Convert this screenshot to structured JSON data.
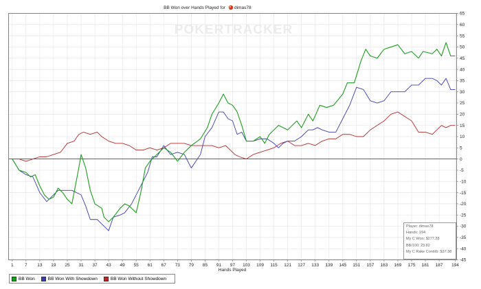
{
  "chart_data": {
    "type": "line",
    "title": "BB Won over Hands Played for",
    "player_name": "dimas78",
    "player_icon": "poker-site-icon",
    "watermark": "POKERTRACKER",
    "xlabel": "Hands Played",
    "ylabel": "",
    "xlim": [
      1,
      194
    ],
    "ylim": [
      -45,
      65
    ],
    "x_ticks": [
      1,
      7,
      13,
      19,
      25,
      31,
      37,
      43,
      49,
      55,
      61,
      67,
      73,
      79,
      85,
      91,
      97,
      103,
      109,
      115,
      121,
      127,
      133,
      139,
      145,
      151,
      157,
      163,
      169,
      175,
      181,
      187,
      194
    ],
    "y_ticks": [
      -45,
      -40,
      -35,
      -30,
      -25,
      -20,
      -15,
      -10,
      -5,
      0,
      5,
      10,
      15,
      20,
      25,
      30,
      35,
      40,
      45,
      50,
      55,
      60,
      65
    ],
    "grid": true,
    "legend": "bottom-left",
    "series": [
      {
        "name": "BB Won",
        "color": "#1a9e1a",
        "points": [
          [
            1,
            0
          ],
          [
            4,
            -5
          ],
          [
            7,
            -6
          ],
          [
            9,
            -8
          ],
          [
            11,
            -7
          ],
          [
            13,
            -12
          ],
          [
            15,
            -16
          ],
          [
            17,
            -18
          ],
          [
            19,
            -17
          ],
          [
            21,
            -13
          ],
          [
            23,
            -15
          ],
          [
            25,
            -18
          ],
          [
            27,
            -20
          ],
          [
            30,
            -4
          ],
          [
            31,
            2
          ],
          [
            33,
            -4
          ],
          [
            35,
            -14
          ],
          [
            37,
            -20
          ],
          [
            40,
            -22
          ],
          [
            41,
            -26
          ],
          [
            43,
            -28
          ],
          [
            45,
            -26
          ],
          [
            48,
            -22
          ],
          [
            50,
            -20
          ],
          [
            52,
            -21
          ],
          [
            55,
            -24
          ],
          [
            57,
            -15
          ],
          [
            59,
            -4
          ],
          [
            61,
            -1
          ],
          [
            64,
            2
          ],
          [
            67,
            5
          ],
          [
            70,
            3
          ],
          [
            73,
            -1
          ],
          [
            76,
            3
          ],
          [
            79,
            6
          ],
          [
            83,
            9
          ],
          [
            86,
            14
          ],
          [
            88,
            20
          ],
          [
            91,
            25
          ],
          [
            93,
            29
          ],
          [
            95,
            25
          ],
          [
            97,
            24
          ],
          [
            99,
            21
          ],
          [
            101,
            15
          ],
          [
            103,
            8
          ],
          [
            106,
            8
          ],
          [
            109,
            10
          ],
          [
            111,
            7
          ],
          [
            113,
            11
          ],
          [
            115,
            13
          ],
          [
            117,
            15
          ],
          [
            121,
            13
          ],
          [
            125,
            17
          ],
          [
            127,
            14
          ],
          [
            130,
            20
          ],
          [
            132,
            17
          ],
          [
            135,
            24
          ],
          [
            138,
            23
          ],
          [
            141,
            24
          ],
          [
            145,
            29
          ],
          [
            147,
            34
          ],
          [
            150,
            34
          ],
          [
            153,
            44
          ],
          [
            155,
            49
          ],
          [
            157,
            46
          ],
          [
            160,
            45
          ],
          [
            163,
            49
          ],
          [
            166,
            50
          ],
          [
            169,
            51
          ],
          [
            172,
            47
          ],
          [
            175,
            48
          ],
          [
            178,
            45
          ],
          [
            180,
            48
          ],
          [
            184,
            47
          ],
          [
            186,
            49
          ],
          [
            188,
            46
          ],
          [
            190,
            52
          ],
          [
            192,
            46
          ],
          [
            194,
            46
          ]
        ]
      },
      {
        "name": "BB Won With Showdown",
        "color": "#3b3bb0",
        "points": [
          [
            1,
            0
          ],
          [
            4,
            -5
          ],
          [
            7,
            -7
          ],
          [
            10,
            -8
          ],
          [
            13,
            -15
          ],
          [
            16,
            -19
          ],
          [
            19,
            -16
          ],
          [
            21,
            -14
          ],
          [
            24,
            -14
          ],
          [
            27,
            -14
          ],
          [
            31,
            -16
          ],
          [
            33,
            -21
          ],
          [
            35,
            -27
          ],
          [
            38,
            -27
          ],
          [
            41,
            -30
          ],
          [
            43,
            -32
          ],
          [
            45,
            -26
          ],
          [
            48,
            -25
          ],
          [
            50,
            -24
          ],
          [
            53,
            -20
          ],
          [
            57,
            -12
          ],
          [
            60,
            -6
          ],
          [
            62,
            1
          ],
          [
            64,
            1
          ],
          [
            67,
            6
          ],
          [
            70,
            2
          ],
          [
            73,
            3
          ],
          [
            76,
            2
          ],
          [
            79,
            -4
          ],
          [
            81,
            -1
          ],
          [
            83,
            2
          ],
          [
            85,
            10
          ],
          [
            88,
            14
          ],
          [
            91,
            21
          ],
          [
            93,
            21
          ],
          [
            95,
            18
          ],
          [
            97,
            17
          ],
          [
            99,
            11
          ],
          [
            101,
            12
          ],
          [
            103,
            8
          ],
          [
            106,
            8
          ],
          [
            109,
            9
          ],
          [
            112,
            9
          ],
          [
            115,
            7
          ],
          [
            117,
            5
          ],
          [
            119,
            7
          ],
          [
            121,
            8
          ],
          [
            124,
            8
          ],
          [
            127,
            10
          ],
          [
            130,
            13
          ],
          [
            132,
            13
          ],
          [
            134,
            14
          ],
          [
            136,
            13
          ],
          [
            139,
            12
          ],
          [
            142,
            12
          ],
          [
            145,
            18
          ],
          [
            148,
            24
          ],
          [
            151,
            32
          ],
          [
            154,
            31
          ],
          [
            157,
            26
          ],
          [
            160,
            25
          ],
          [
            163,
            26
          ],
          [
            166,
            30
          ],
          [
            169,
            30
          ],
          [
            172,
            30
          ],
          [
            175,
            33
          ],
          [
            178,
            33
          ],
          [
            181,
            36
          ],
          [
            184,
            36
          ],
          [
            186,
            35
          ],
          [
            188,
            33
          ],
          [
            190,
            36
          ],
          [
            192,
            31
          ],
          [
            194,
            31
          ]
        ]
      },
      {
        "name": "BB Won Without Showdown",
        "color": "#b52a2a",
        "points": [
          [
            1,
            0
          ],
          [
            4,
            0
          ],
          [
            7,
            -1
          ],
          [
            10,
            0
          ],
          [
            13,
            1
          ],
          [
            16,
            1
          ],
          [
            19,
            2
          ],
          [
            22,
            3
          ],
          [
            25,
            7
          ],
          [
            28,
            8
          ],
          [
            30,
            11
          ],
          [
            32,
            12
          ],
          [
            35,
            11
          ],
          [
            38,
            12
          ],
          [
            40,
            10
          ],
          [
            43,
            8
          ],
          [
            46,
            7
          ],
          [
            49,
            7
          ],
          [
            52,
            6
          ],
          [
            55,
            4
          ],
          [
            58,
            4
          ],
          [
            61,
            5
          ],
          [
            64,
            4
          ],
          [
            67,
            5
          ],
          [
            70,
            7
          ],
          [
            73,
            7
          ],
          [
            76,
            7
          ],
          [
            79,
            6
          ],
          [
            82,
            6
          ],
          [
            85,
            6
          ],
          [
            88,
            6
          ],
          [
            91,
            5
          ],
          [
            94,
            6
          ],
          [
            96,
            4
          ],
          [
            98,
            2
          ],
          [
            100,
            1
          ],
          [
            103,
            0
          ],
          [
            106,
            2
          ],
          [
            109,
            3
          ],
          [
            112,
            4
          ],
          [
            115,
            5
          ],
          [
            118,
            7
          ],
          [
            121,
            8
          ],
          [
            124,
            6
          ],
          [
            127,
            6
          ],
          [
            130,
            7
          ],
          [
            133,
            6
          ],
          [
            136,
            8
          ],
          [
            139,
            9
          ],
          [
            142,
            9
          ],
          [
            145,
            11
          ],
          [
            148,
            11
          ],
          [
            151,
            10
          ],
          [
            154,
            10
          ],
          [
            157,
            13
          ],
          [
            160,
            15
          ],
          [
            163,
            17
          ],
          [
            166,
            20
          ],
          [
            169,
            21
          ],
          [
            172,
            19
          ],
          [
            175,
            17
          ],
          [
            178,
            12
          ],
          [
            181,
            12
          ],
          [
            184,
            11
          ],
          [
            186,
            13
          ],
          [
            188,
            15
          ],
          [
            190,
            14
          ],
          [
            192,
            15
          ],
          [
            194,
            15
          ]
        ]
      }
    ]
  },
  "legend_items": [
    {
      "label": "BB Won",
      "color": "#1a9e1a"
    },
    {
      "label": "BB Won With Showdown",
      "color": "#3b3bb0"
    },
    {
      "label": "BB Won Without Showdown",
      "color": "#b52a2a"
    }
  ],
  "stats": {
    "player": "Player: dimas78",
    "hands": "Hands: 194",
    "won": "My C Won: $277.28",
    "bb100": "BB/100: 23.82",
    "rake": "My C Rake Contrib: $37.38"
  },
  "colors": {
    "grid": "#e6e6e6",
    "axis": "#808080",
    "zero_line": "#333333",
    "plot_bg": "#ffffff"
  }
}
